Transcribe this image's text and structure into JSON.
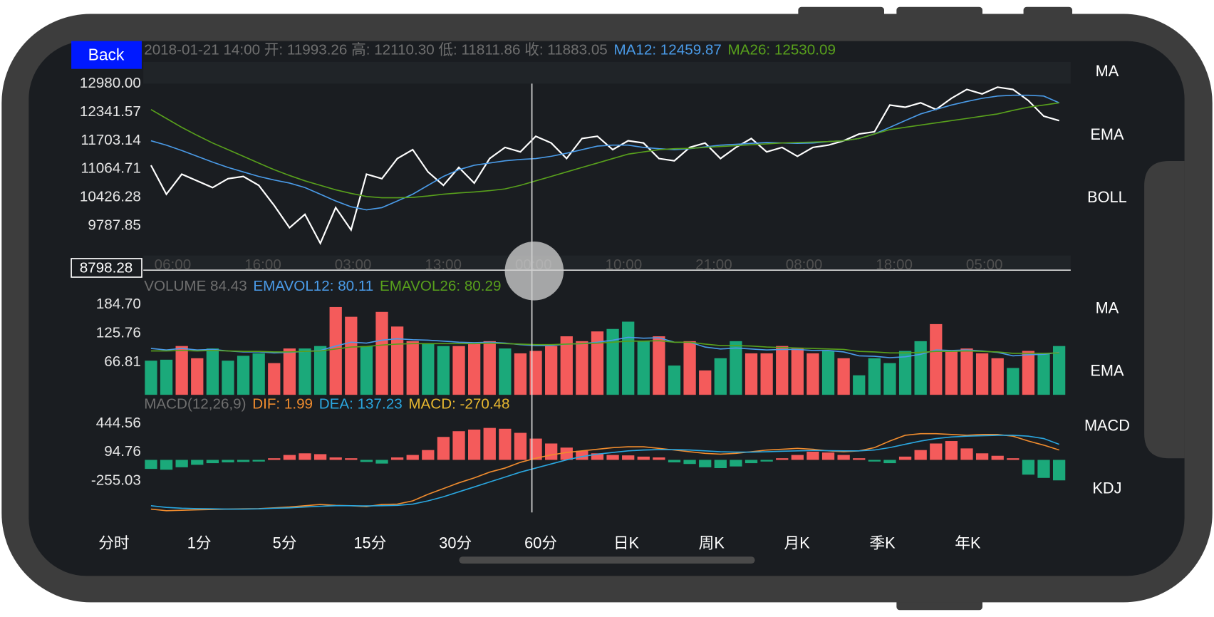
{
  "back_button": "Back",
  "chart_data": [
    {
      "type": "line",
      "title": "2018-01-21 14:00 开: 11993.26 高: 12110.30 低: 11811.86 收: 11883.05",
      "series": [
        {
          "color": "#ffffff",
          "values": [
            11150,
            10500,
            10950,
            10800,
            10650,
            10850,
            10900,
            10700,
            10250,
            9750,
            10050,
            9400,
            10200,
            9700,
            10950,
            10850,
            11300,
            11500,
            11000,
            10700,
            11100,
            10750,
            11300,
            11550,
            11450,
            11800,
            11650,
            11300,
            11750,
            11800,
            11500,
            11700,
            11650,
            11300,
            11250,
            11550,
            11650,
            11300,
            11550,
            11750,
            11450,
            11550,
            11350,
            11550,
            11600,
            11700,
            11850,
            11900,
            12500,
            12450,
            12550,
            12400,
            12650,
            12850,
            12750,
            12900,
            12850,
            12600,
            12250,
            12150
          ]
        },
        {
          "name": "MA12: 12459.87",
          "color": "#4a9be8",
          "values": [
            11700,
            11600,
            11480,
            11350,
            11220,
            11100,
            11000,
            10900,
            10820,
            10750,
            10650,
            10500,
            10350,
            10220,
            10150,
            10200,
            10350,
            10500,
            10700,
            10900,
            11050,
            11150,
            11200,
            11250,
            11280,
            11300,
            11350,
            11420,
            11500,
            11580,
            11600,
            11600,
            11550,
            11520,
            11500,
            11520,
            11560,
            11600,
            11620,
            11640,
            11660,
            11650,
            11640,
            11650,
            11680,
            11700,
            11750,
            11850,
            12000,
            12150,
            12300,
            12400,
            12500,
            12580,
            12650,
            12700,
            12720,
            12720,
            12700,
            12550
          ]
        },
        {
          "name": "MA26: 12530.09",
          "color": "#58a01c",
          "values": [
            12400,
            12200,
            12000,
            11820,
            11650,
            11500,
            11350,
            11200,
            11050,
            10920,
            10800,
            10700,
            10600,
            10520,
            10450,
            10420,
            10420,
            10430,
            10460,
            10500,
            10530,
            10550,
            10580,
            10620,
            10700,
            10800,
            10900,
            11000,
            11100,
            11200,
            11300,
            11400,
            11450,
            11500,
            11520,
            11530,
            11550,
            11570,
            11590,
            11610,
            11630,
            11650,
            11660,
            11670,
            11680,
            11700,
            11750,
            11850,
            11950,
            12000,
            12050,
            12100,
            12150,
            12200,
            12250,
            12300,
            12380,
            12450,
            12500,
            12550
          ]
        }
      ],
      "ylim": [
        8798.28,
        12980
      ],
      "yticks": [
        {
          "value": 12980,
          "label": "12980.00"
        },
        12341.57,
        11703.14,
        11064.71,
        10426.28,
        9787.85
      ],
      "xlabels": [
        "06:00",
        "16:00",
        "03:00",
        "13:00",
        "00:00",
        "10:00",
        "21:00",
        "08:00",
        "18:00",
        "05:00"
      ],
      "crosshair": 8798.28
    },
    {
      "type": "bar",
      "title": "VOLUME 84.43",
      "values": [
        70,
        72,
        100,
        75,
        95,
        70,
        80,
        85,
        65,
        95,
        95,
        100,
        180,
        160,
        100,
        170,
        140,
        110,
        105,
        100,
        100,
        105,
        110,
        95,
        85,
        90,
        100,
        120,
        110,
        130,
        135,
        150,
        110,
        120,
        60,
        110,
        50,
        75,
        110,
        85,
        85,
        100,
        95,
        85,
        90,
        75,
        40,
        75,
        65,
        90,
        110,
        145,
        90,
        95,
        85,
        75,
        55,
        90,
        85,
        100
      ],
      "rising": [
        false,
        false,
        true,
        true,
        false,
        false,
        false,
        false,
        true,
        true,
        false,
        false,
        true,
        true,
        false,
        true,
        true,
        true,
        false,
        false,
        true,
        true,
        true,
        false,
        true,
        true,
        true,
        true,
        true,
        true,
        false,
        false,
        false,
        true,
        false,
        true,
        true,
        false,
        false,
        true,
        true,
        true,
        true,
        true,
        false,
        true,
        false,
        false,
        false,
        false,
        false,
        true,
        true,
        true,
        true,
        true,
        false,
        true,
        false,
        false
      ],
      "up_color": "#f45b5b",
      "down_color": "#1ba97a",
      "series": [
        {
          "name": "EMAVOL12: 80.11",
          "color": "#4a9be8",
          "values": [
            95,
            92,
            95,
            92,
            93,
            90,
            88,
            88,
            86,
            87,
            89,
            91,
            100,
            108,
            106,
            112,
            115,
            113,
            112,
            110,
            108,
            107,
            108,
            106,
            103,
            101,
            101,
            104,
            105,
            108,
            112,
            118,
            116,
            117,
            108,
            108,
            98,
            94,
            96,
            94,
            92,
            93,
            93,
            91,
            91,
            88,
            80,
            79,
            76,
            78,
            83,
            92,
            91,
            92,
            90,
            87,
            80,
            82,
            83,
            87
          ]
        },
        {
          "name": "EMAVOL26: 80.29",
          "color": "#58a01c",
          "values": [
            90,
            90,
            91,
            90,
            91,
            90,
            89,
            89,
            88,
            88,
            89,
            90,
            94,
            98,
            99,
            102,
            104,
            105,
            105,
            105,
            105,
            105,
            106,
            105,
            104,
            103,
            103,
            104,
            105,
            106,
            108,
            110,
            110,
            111,
            108,
            108,
            104,
            101,
            101,
            100,
            98,
            97,
            96,
            95,
            94,
            93,
            89,
            88,
            86,
            86,
            87,
            89,
            89,
            90,
            89,
            88,
            85,
            85,
            85,
            86
          ]
        }
      ],
      "ylim": [
        0,
        200
      ],
      "yticks": [
        {
          "value": 184.7,
          "label": "184.70"
        },
        125.76,
        66.81
      ]
    },
    {
      "type": "bar",
      "title": "MACD(12,26,9)",
      "value_name": "MACD: -270.48",
      "values": [
        -110,
        -120,
        -90,
        -60,
        -40,
        -30,
        -25,
        -20,
        20,
        60,
        80,
        70,
        30,
        20,
        -25,
        -45,
        30,
        60,
        120,
        280,
        350,
        370,
        390,
        380,
        330,
        260,
        200,
        150,
        110,
        80,
        60,
        55,
        40,
        30,
        -30,
        -50,
        -90,
        -100,
        -80,
        -40,
        -20,
        20,
        60,
        100,
        90,
        60,
        20,
        -20,
        -40,
        40,
        120,
        200,
        230,
        140,
        80,
        50,
        20,
        -180,
        -220,
        -250
      ],
      "up_color": "#f45b5b",
      "down_color": "#1ba97a",
      "value_color": "#e8b830",
      "series": [
        {
          "name": "DIF: 1.99",
          "color": "#f08c2e",
          "values": [
            -600,
            -620,
            -615,
            -610,
            -605,
            -600,
            -598,
            -595,
            -585,
            -575,
            -560,
            -545,
            -555,
            -560,
            -570,
            -545,
            -540,
            -500,
            -420,
            -350,
            -280,
            -220,
            -150,
            -100,
            -30,
            20,
            60,
            90,
            110,
            130,
            150,
            160,
            160,
            140,
            120,
            100,
            80,
            70,
            80,
            100,
            120,
            130,
            140,
            130,
            110,
            100,
            110,
            150,
            230,
            300,
            320,
            320,
            310,
            300,
            310,
            310,
            290,
            230,
            180,
            120
          ]
        },
        {
          "name": "DEA: 137.23",
          "color": "#2aa7e0",
          "values": [
            -560,
            -580,
            -590,
            -595,
            -598,
            -600,
            -600,
            -598,
            -590,
            -585,
            -575,
            -565,
            -560,
            -560,
            -562,
            -560,
            -555,
            -540,
            -500,
            -450,
            -390,
            -330,
            -270,
            -210,
            -150,
            -100,
            -50,
            0,
            40,
            70,
            90,
            110,
            120,
            125,
            125,
            120,
            110,
            100,
            95,
            95,
            100,
            105,
            110,
            115,
            112,
            110,
            110,
            120,
            150,
            190,
            230,
            260,
            280,
            290,
            295,
            300,
            300,
            290,
            260,
            190
          ]
        }
      ],
      "ylim": [
        -642,
        539
      ],
      "yticks": [
        444.56,
        94.76,
        -255.03
      ]
    }
  ],
  "side_buttons": {
    "price": [
      "MA",
      "EMA",
      "BOLL"
    ],
    "volume": [
      "MA",
      "EMA"
    ],
    "macd": [
      "MACD",
      "KDJ"
    ]
  },
  "tabs": [
    "分时",
    "1分",
    "5分",
    "15分",
    "30分",
    "60分",
    "日K",
    "周K",
    "月K",
    "季K",
    "年K"
  ]
}
